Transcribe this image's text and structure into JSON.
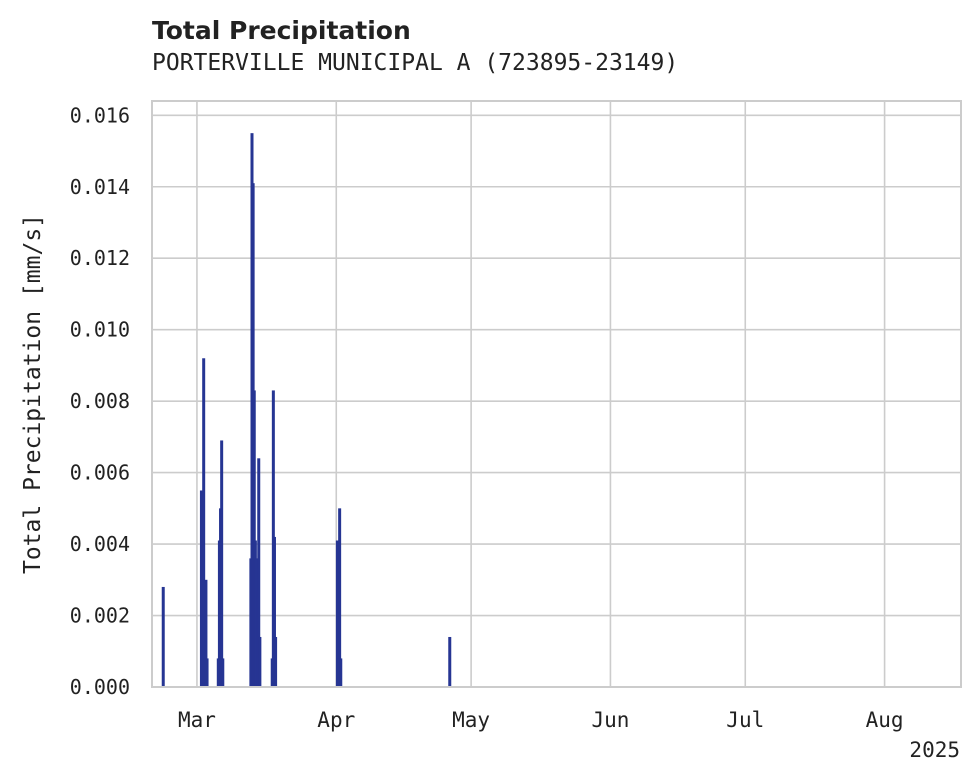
{
  "chart_data": {
    "type": "bar",
    "title": "Total Precipitation",
    "subtitle": "PORTERVILLE MUNICIPAL A (723895-23149)",
    "xlabel": "",
    "ylabel": "Total Precipitation [mm/s]",
    "year_label": "2025",
    "xlim": [
      "2025-02-19",
      "2025-08-18"
    ],
    "ylim": [
      0,
      0.0164
    ],
    "grid": true,
    "bar_color": "#263593",
    "x_ticks": [
      {
        "date": "2025-03-01",
        "label": "Mar"
      },
      {
        "date": "2025-04-01",
        "label": "Apr"
      },
      {
        "date": "2025-05-01",
        "label": "May"
      },
      {
        "date": "2025-06-01",
        "label": "Jun"
      },
      {
        "date": "2025-07-01",
        "label": "Jul"
      },
      {
        "date": "2025-08-01",
        "label": "Aug"
      }
    ],
    "y_ticks": [
      "0.000",
      "0.002",
      "0.004",
      "0.006",
      "0.008",
      "0.010",
      "0.012",
      "0.014",
      "0.016"
    ],
    "x": [
      "2025-02-21T12:00",
      "2025-03-02T00:00",
      "2025-03-02T06:00",
      "2025-03-02T12:00",
      "2025-03-02T18:00",
      "2025-03-03T00:00",
      "2025-03-03T06:00",
      "2025-03-05T18:00",
      "2025-03-06T00:00",
      "2025-03-06T06:00",
      "2025-03-06T12:00",
      "2025-03-06T18:00",
      "2025-03-13T00:00",
      "2025-03-13T06:00",
      "2025-03-13T12:00",
      "2025-03-13T18:00",
      "2025-03-14T00:00",
      "2025-03-14T06:00",
      "2025-03-14T12:00",
      "2025-03-14T18:00",
      "2025-03-15T00:00",
      "2025-03-17T18:00",
      "2025-03-18T00:00",
      "2025-03-18T06:00",
      "2025-03-18T12:00",
      "2025-04-01T06:00",
      "2025-04-01T12:00",
      "2025-04-01T18:00",
      "2025-04-02T00:00",
      "2025-04-26T06:00"
    ],
    "values": [
      0.0028,
      0.0055,
      0.0041,
      0.0092,
      0.0008,
      0.003,
      0.0008,
      0.0008,
      0.0041,
      0.005,
      0.0069,
      0.0008,
      0.0036,
      0.0155,
      0.0141,
      0.0083,
      0.0041,
      0.0036,
      0.0027,
      0.0064,
      0.0014,
      0.0008,
      0.0083,
      0.0042,
      0.0014,
      0.0041,
      0.0008,
      0.005,
      0.0008,
      0.0014
    ]
  }
}
